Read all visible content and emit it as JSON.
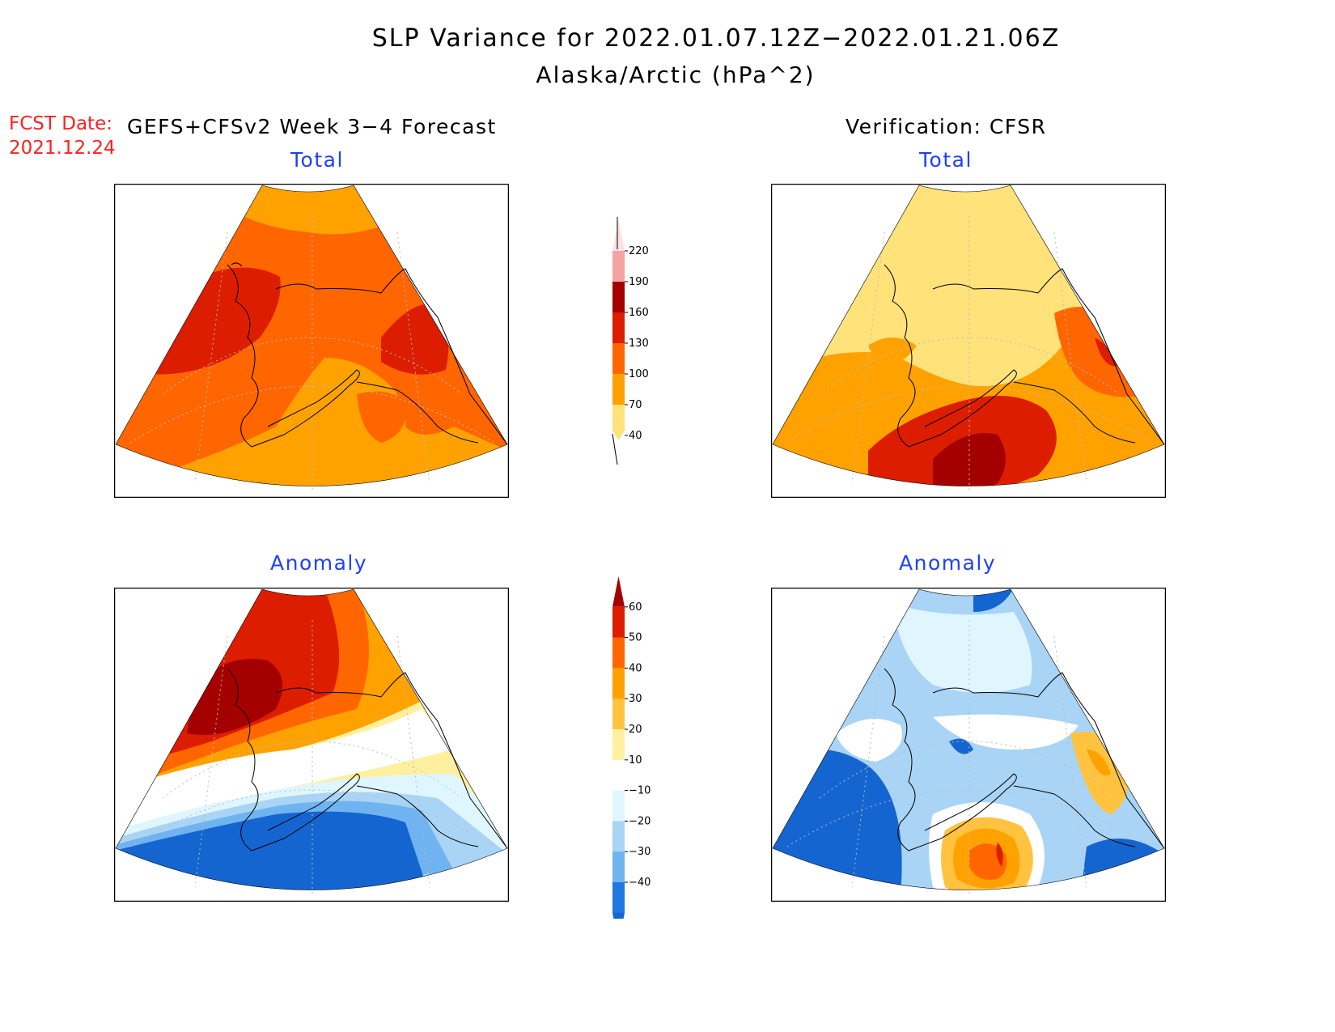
{
  "title": {
    "line1": "SLP Variance for 2022.01.07.12Z−2022.01.21.06Z",
    "line2": "Alaska/Arctic (hPa^2)"
  },
  "forecast_date": {
    "label": "FCST Date:",
    "value": "2021.12.24"
  },
  "columns": {
    "left": "GEFS+CFSv2 Week 3−4 Forecast",
    "right": "Verification: CFSR"
  },
  "panels": {
    "top_left_subtitle": "Total",
    "top_right_subtitle": "Total",
    "bottom_left_subtitle": "Anomaly",
    "bottom_right_subtitle": "Anomaly"
  },
  "colorbars": {
    "total": {
      "labels": [
        "220",
        "190",
        "160",
        "130",
        "100",
        "70",
        "40"
      ],
      "colors": [
        "#fde1e1",
        "#f4a3a3",
        "#a50000",
        "#dd1d00",
        "#ff6600",
        "#ffa200",
        "#ffe27a"
      ]
    },
    "anomaly": {
      "labels": [
        "60",
        "50",
        "40",
        "30",
        "20",
        "10",
        "−10",
        "−20",
        "−30",
        "−40"
      ],
      "colors": [
        "#a50000",
        "#dd1d00",
        "#ff6600",
        "#ffa200",
        "#ffc340",
        "#fff0a0",
        "#ffffff",
        "#dff6ff",
        "#a9d4f5",
        "#6fb3f0",
        "#1f78e0",
        "#1565d0"
      ]
    }
  },
  "map_colors": {
    "map_fill_background": "#ff6600",
    "coastline": "#000000",
    "grid": "#bbbbbb"
  }
}
